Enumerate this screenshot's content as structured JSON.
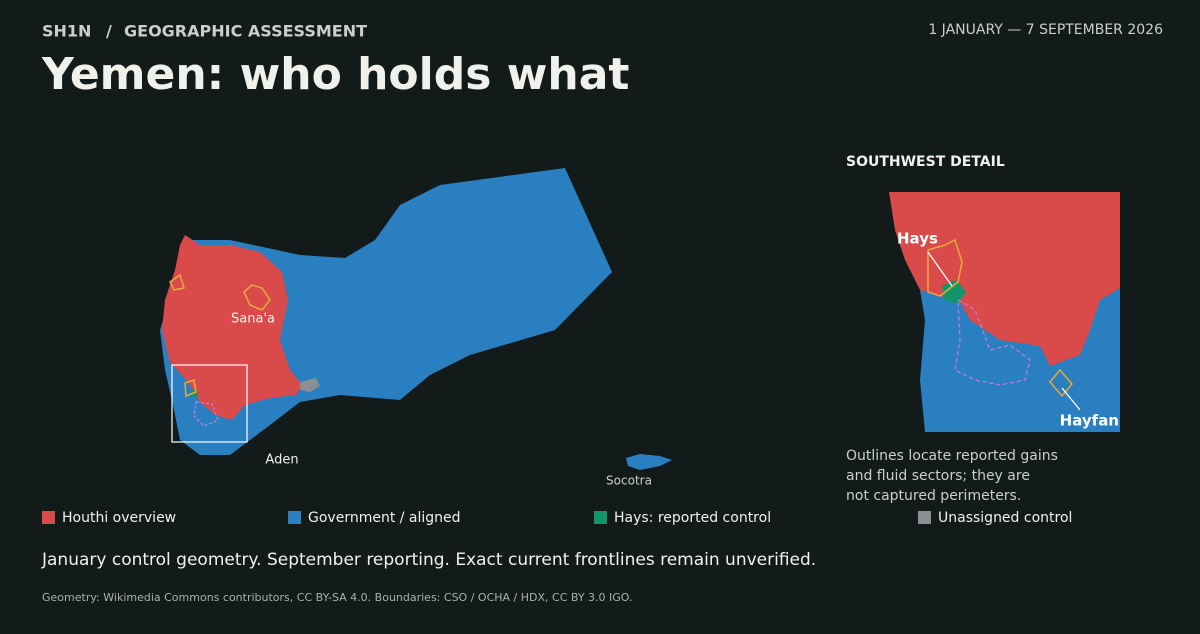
{
  "header": {
    "kicker": "SH1N",
    "separator": "/",
    "section": "GEOGRAPHIC ASSESSMENT",
    "date_range": "1 JANUARY — 7 SEPTEMBER 2026",
    "title": "Yemen: who holds what"
  },
  "map": {
    "labels": [
      "Sana'a",
      "Aden",
      "Socotra"
    ]
  },
  "inset": {
    "title": "SOUTHWEST DETAIL",
    "labels": [
      "Hays",
      "Hayfan"
    ],
    "note": [
      "Outlines locate reported gains",
      "and fluid sectors; they are",
      "not captured perimeters."
    ]
  },
  "legend": [
    {
      "label": "Houthi overview",
      "color": "#d94a4a"
    },
    {
      "label": "Government / aligned",
      "color": "#2a7fc1"
    },
    {
      "label": "Hays: reported control",
      "color": "#13946b"
    },
    {
      "label": "Unassigned control",
      "color": "#8a8f94"
    }
  ],
  "caption": "January control geometry. September reporting. Exact current frontlines remain unverified.",
  "source": "Geometry: Wikimedia Commons contributors, CC BY-SA 4.0. Boundaries: CSO / OCHA / HDX, CC BY 3.0 IGO."
}
